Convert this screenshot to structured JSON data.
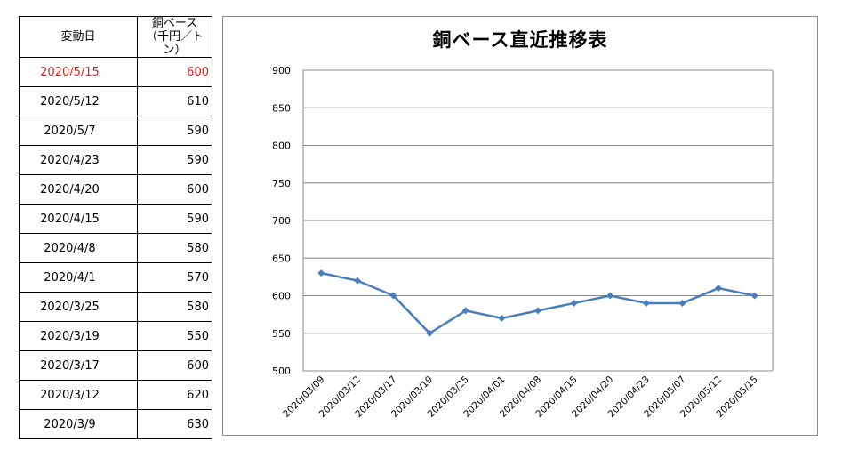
{
  "table": {
    "header": {
      "date": "変動日",
      "price_line1": "銅ベース",
      "price_line2": "（千円／トン）"
    },
    "rows": [
      {
        "date": "2020/5/15",
        "price": "600"
      },
      {
        "date": "2020/5/12",
        "price": "610"
      },
      {
        "date": "2020/5/7",
        "price": "590"
      },
      {
        "date": "2020/4/23",
        "price": "590"
      },
      {
        "date": "2020/4/20",
        "price": "600"
      },
      {
        "date": "2020/4/15",
        "price": "590"
      },
      {
        "date": "2020/4/8",
        "price": "580"
      },
      {
        "date": "2020/4/1",
        "price": "570"
      },
      {
        "date": "2020/3/25",
        "price": "580"
      },
      {
        "date": "2020/3/19",
        "price": "550"
      },
      {
        "date": "2020/3/17",
        "price": "600"
      },
      {
        "date": "2020/3/12",
        "price": "620"
      },
      {
        "date": "2020/3/9",
        "price": "630"
      }
    ],
    "highlight_color": "#e0201b"
  },
  "chart_data": {
    "type": "line",
    "title": "銅ベース直近推移表",
    "xlabel": "",
    "ylabel": "",
    "categories": [
      "2020/03/09",
      "2020/03/12",
      "2020/03/17",
      "2020/03/19",
      "2020/03/25",
      "2020/04/01",
      "2020/04/08",
      "2020/04/15",
      "2020/04/20",
      "2020/04/23",
      "2020/05/07",
      "2020/05/12",
      "2020/05/15"
    ],
    "series": [
      {
        "values": [
          630,
          620,
          600,
          550,
          580,
          570,
          580,
          590,
          600,
          590,
          590,
          610,
          600
        ],
        "color": "#4a7ebb"
      }
    ],
    "ylim": [
      500,
      900
    ],
    "yticks": [
      500,
      550,
      600,
      650,
      700,
      750,
      800,
      850,
      900
    ],
    "grid": true,
    "legend": "none"
  }
}
